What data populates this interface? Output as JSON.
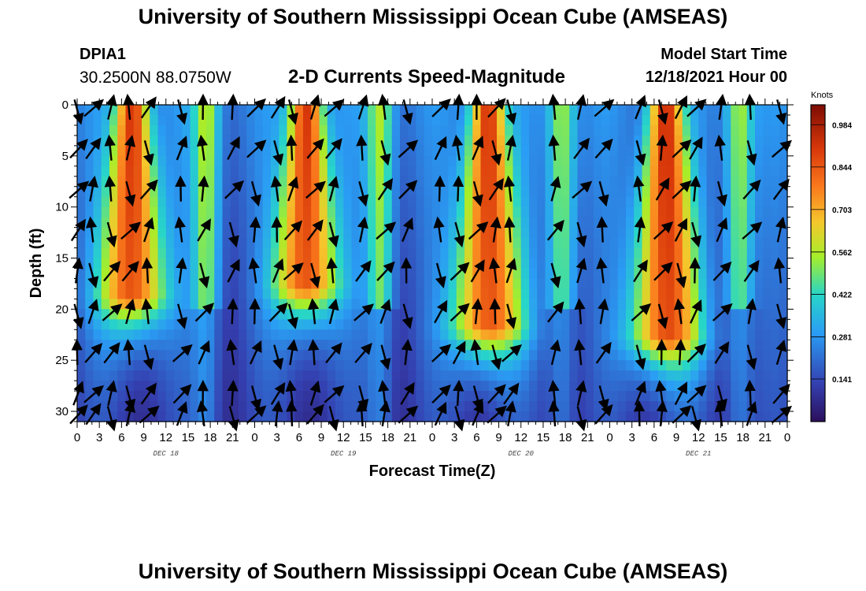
{
  "header": {
    "title": "University of Southern Mississippi Ocean Cube (AMSEAS)",
    "station": "DPIA1",
    "coords": "30.2500N  88.0750W",
    "subtitle": "2-D Currents Speed-Magnitude",
    "model_label": "Model Start Time",
    "model_time": "12/18/2021 Hour 00"
  },
  "footer": {
    "title": "University of Southern Mississippi Ocean Cube (AMSEAS)"
  },
  "chart_data": {
    "type": "heatmap",
    "title": "2-D Currents Speed-Magnitude",
    "xlabel": "Forecast Time(Z)",
    "ylabel": "Depth (ft)",
    "x_range_hours": [
      0,
      96
    ],
    "x_tick_labels": [
      "0",
      "3",
      "6",
      "9",
      "12",
      "15",
      "18",
      "21",
      "0",
      "3",
      "6",
      "9",
      "12",
      "15",
      "18",
      "21",
      "0",
      "3",
      "6",
      "9",
      "12",
      "15",
      "18",
      "21",
      "0",
      "3",
      "6",
      "9",
      "12",
      "15",
      "18",
      "21",
      "0"
    ],
    "day_labels": [
      {
        "label": "DEC 18",
        "hour": 12
      },
      {
        "label": "DEC 19",
        "hour": 36
      },
      {
        "label": "DEC 20",
        "hour": 60
      },
      {
        "label": "DEC 21",
        "hour": 84
      }
    ],
    "y_range_ft": [
      0,
      31
    ],
    "y_ticks": [
      0,
      5,
      10,
      15,
      20,
      25,
      30
    ],
    "colorbar": {
      "label": "Knots",
      "min": 0.0,
      "max": 1.05,
      "ticks": [
        "0.984",
        "0.844",
        "0.703",
        "0.562",
        "0.422",
        "0.281",
        "0.141"
      ],
      "tick_values": [
        0.984,
        0.844,
        0.703,
        0.562,
        0.422,
        0.281,
        0.141
      ]
    },
    "speed_maxima": [
      {
        "hour": 7.5,
        "surface_knots": 1.0,
        "depth_extent_ft": 19
      },
      {
        "hour": 31.0,
        "surface_knots": 1.0,
        "depth_extent_ft": 18
      },
      {
        "hour": 55.5,
        "surface_knots": 1.0,
        "depth_extent_ft": 22
      },
      {
        "hour": 79.5,
        "surface_knots": 1.0,
        "depth_extent_ft": 23
      }
    ],
    "vector_depths_ft": [
      0,
      4,
      8,
      12,
      16,
      20,
      24,
      28,
      30
    ],
    "vector_hours": [
      0,
      2,
      4.5,
      7,
      9.5,
      14,
      17,
      21,
      24,
      27,
      29,
      32,
      34.5,
      38.5,
      41.5,
      44.5,
      49,
      51.5,
      54,
      56.5,
      58.5,
      64.5,
      68,
      71,
      76,
      79,
      81.5,
      83.5,
      87,
      91,
      95
    ]
  }
}
